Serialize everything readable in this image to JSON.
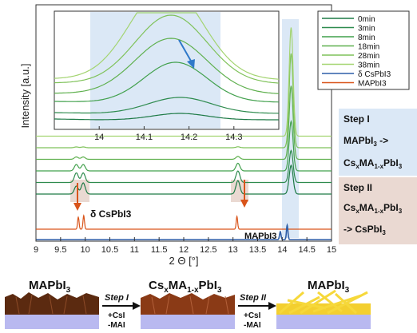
{
  "chart_data": {
    "type": "line",
    "xlabel": "2 Θ [°]",
    "ylabel": "Intensity [a.u.]",
    "xlim": [
      9,
      15
    ],
    "x_ticks": [
      "9",
      "9.5",
      "10",
      "10.5",
      "11",
      "11.5",
      "12",
      "12.5",
      "13",
      "13.5",
      "14",
      "14.5",
      "15"
    ],
    "legend_position": "top-right",
    "legend": [
      "0min",
      "3min",
      "8min",
      "18min",
      "28min",
      "38min",
      "δ CsPbI3",
      "MAPbI3"
    ],
    "series": [
      {
        "name": "0min",
        "color": "#1e7a46",
        "offset": 0
      },
      {
        "name": "3min",
        "color": "#2e8b4e",
        "offset": 1
      },
      {
        "name": "8min",
        "color": "#41a04c",
        "offset": 2
      },
      {
        "name": "18min",
        "color": "#5fb04e",
        "offset": 3
      },
      {
        "name": "28min",
        "color": "#7fc25a",
        "offset": 4
      },
      {
        "name": "38min",
        "color": "#a3d470",
        "offset": 5
      },
      {
        "name": "δ CsPbI3",
        "color": "#2f5fa8",
        "peaks": [
          13.95,
          14.1
        ]
      },
      {
        "name": "MAPbI3",
        "color": "#d9541a",
        "peaks": [
          9.85,
          9.96,
          13.08
        ]
      }
    ],
    "annotations": {
      "delta_label": "δ CsPbI3",
      "mapbi_label": "MAPbI3",
      "step1_title": "Step I",
      "step1_line1": "MAPbI3 ->",
      "step1_line2": "CsxMA1-xPbI3",
      "step2_title": "Step II",
      "step2_line1": "CsxMA1-xPbI3",
      "step2_line2": "-> CsPbI3"
    },
    "inset": {
      "xlim": [
        13.9,
        14.4
      ],
      "x_ticks": [
        "14",
        "14.1",
        "14.2",
        "14.3"
      ]
    }
  },
  "schematic": {
    "label1": "MAPbI3",
    "label2": "CsxMA1-xPbI3",
    "label3": "MAPbI3",
    "step1": "Step I",
    "step1_add": "+CsI",
    "step1_rem": "-MAI",
    "step2": "Step II",
    "step2_add": "+CsI",
    "step2_rem": "-MAI",
    "colors": {
      "dark_film": "#5b2a10",
      "mid_film": "#8a3a16",
      "yellow_film": "#f3cf2f",
      "substrate": "#b9b9f0"
    }
  }
}
